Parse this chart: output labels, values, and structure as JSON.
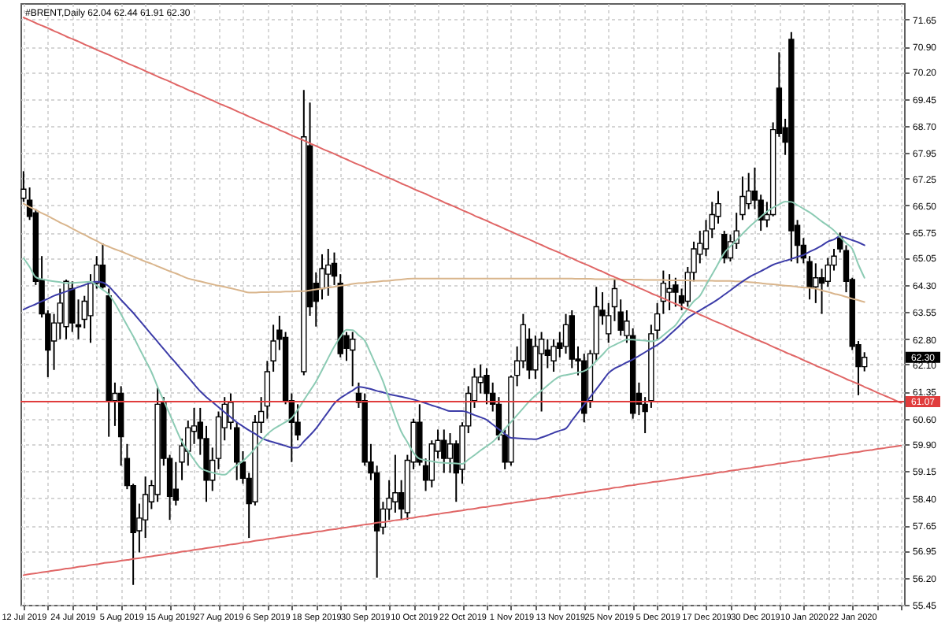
{
  "chart_data": {
    "type": "candlestick",
    "title": "#BRENT,Daily  62.04 62.44 61.91 62.30",
    "categories": [
      "12 Jul 2019",
      null,
      null,
      null,
      null,
      null,
      null,
      null,
      "24 Jul 2019",
      null,
      null,
      null,
      null,
      null,
      null,
      null,
      "5 Aug 2019",
      null,
      null,
      null,
      null,
      null,
      null,
      null,
      "15 Aug 2019",
      null,
      null,
      null,
      null,
      null,
      null,
      null,
      "27 Aug 2019",
      null,
      null,
      null,
      null,
      null,
      null,
      null,
      "6 Sep 2019",
      null,
      null,
      null,
      null,
      null,
      null,
      null,
      "18 Sep 2019",
      null,
      null,
      null,
      null,
      null,
      null,
      null,
      "30 Sep 2019",
      null,
      null,
      null,
      null,
      null,
      null,
      null,
      "10 Oct 2019",
      null,
      null,
      null,
      null,
      null,
      null,
      null,
      "22 Oct 2019",
      null,
      null,
      null,
      null,
      null,
      null,
      null,
      "1 Nov 2019",
      null,
      null,
      null,
      null,
      null,
      null,
      null,
      "13 Nov 2019",
      null,
      null,
      null,
      null,
      null,
      null,
      null,
      "25 Nov 2019",
      null,
      null,
      null,
      null,
      null,
      null,
      null,
      "5 Dec 2019",
      null,
      null,
      null,
      null,
      null,
      null,
      null,
      "17 Dec 2019",
      null,
      null,
      null,
      null,
      null,
      null,
      null,
      "30 Dec 2019",
      null,
      null,
      null,
      null,
      null,
      null,
      null,
      "10 Jan 2020",
      null,
      null,
      null,
      null,
      null,
      null,
      null,
      "22 Jan 2020",
      null,
      null,
      null,
      null,
      null,
      null,
      null,
      null
    ],
    "ohlc": [
      [
        66.7,
        67.45,
        66.6,
        66.95
      ],
      [
        66.65,
        67.0,
        66.1,
        66.2
      ],
      [
        66.3,
        66.4,
        64.3,
        64.4
      ],
      [
        64.45,
        65.1,
        63.4,
        63.5
      ],
      [
        63.5,
        63.6,
        61.75,
        62.5
      ],
      [
        62.75,
        63.5,
        61.95,
        63.25
      ],
      [
        63.25,
        64.2,
        62.8,
        63.8
      ],
      [
        63.15,
        64.45,
        62.8,
        64.4
      ],
      [
        64.2,
        64.4,
        63.0,
        63.25
      ],
      [
        63.2,
        63.9,
        62.8,
        63.15
      ],
      [
        63.35,
        64.0,
        63.1,
        63.85
      ],
      [
        63.45,
        64.6,
        62.7,
        64.35
      ],
      [
        64.35,
        65.1,
        64.2,
        64.85
      ],
      [
        64.85,
        65.45,
        64.2,
        64.25
      ],
      [
        64.0,
        64.2,
        60.1,
        61.1
      ],
      [
        61.1,
        61.6,
        60.4,
        61.3
      ],
      [
        61.3,
        61.5,
        59.3,
        60.1
      ],
      [
        59.5,
        59.9,
        58.65,
        58.75
      ],
      [
        58.75,
        58.8,
        56.0,
        57.45
      ],
      [
        57.5,
        58.25,
        56.9,
        57.85
      ],
      [
        57.8,
        59.0,
        57.3,
        58.5
      ],
      [
        58.3,
        58.9,
        58.1,
        58.75
      ],
      [
        58.5,
        61.45,
        58.3,
        61.0
      ],
      [
        61.05,
        61.2,
        59.3,
        59.5
      ],
      [
        59.5,
        59.6,
        57.8,
        58.45
      ],
      [
        58.65,
        59.4,
        58.2,
        58.35
      ],
      [
        59.4,
        60.05,
        58.9,
        59.85
      ],
      [
        59.7,
        60.55,
        59.3,
        60.35
      ],
      [
        60.25,
        60.9,
        59.9,
        60.4
      ],
      [
        60.5,
        60.9,
        59.6,
        60.05
      ],
      [
        60.05,
        60.4,
        58.3,
        58.9
      ],
      [
        58.9,
        59.8,
        58.6,
        59.45
      ],
      [
        59.5,
        60.8,
        59.2,
        60.65
      ],
      [
        60.35,
        61.2,
        60.0,
        61.0
      ],
      [
        60.5,
        61.3,
        60.3,
        61.05
      ],
      [
        60.35,
        60.5,
        58.9,
        59.4
      ],
      [
        59.4,
        59.7,
        58.8,
        58.95
      ],
      [
        58.95,
        59.1,
        57.3,
        58.25
      ],
      [
        58.3,
        60.7,
        58.2,
        60.5
      ],
      [
        60.5,
        61.2,
        60.2,
        60.8
      ],
      [
        60.95,
        62.2,
        60.6,
        61.9
      ],
      [
        62.2,
        63.2,
        61.9,
        62.75
      ],
      [
        63.05,
        63.45,
        62.5,
        62.8
      ],
      [
        62.85,
        63.0,
        61.0,
        61.1
      ],
      [
        61.1,
        61.3,
        59.4,
        60.5
      ],
      [
        60.5,
        61.0,
        60.0,
        60.15
      ],
      [
        61.9,
        69.7,
        61.8,
        68.4
      ],
      [
        68.15,
        69.35,
        63.45,
        63.7
      ],
      [
        64.35,
        64.65,
        63.15,
        63.85
      ],
      [
        64.2,
        65.15,
        63.9,
        64.75
      ],
      [
        64.6,
        65.3,
        64.0,
        64.85
      ],
      [
        64.9,
        65.2,
        64.3,
        64.55
      ],
      [
        64.35,
        64.6,
        62.3,
        62.4
      ],
      [
        62.9,
        63.0,
        62.2,
        62.55
      ],
      [
        62.5,
        63.0,
        61.5,
        62.8
      ],
      [
        61.3,
        61.6,
        60.9,
        61.05
      ],
      [
        61.1,
        61.3,
        59.3,
        59.4
      ],
      [
        59.4,
        59.9,
        58.9,
        59.1
      ],
      [
        59.1,
        59.3,
        56.2,
        57.5
      ],
      [
        57.6,
        58.3,
        57.4,
        58.1
      ],
      [
        58.1,
        58.9,
        57.8,
        58.4
      ],
      [
        58.3,
        59.6,
        58.0,
        58.55
      ],
      [
        58.55,
        58.9,
        57.8,
        58.1
      ],
      [
        58.0,
        59.6,
        57.8,
        59.45
      ],
      [
        59.4,
        60.6,
        59.2,
        60.5
      ],
      [
        60.5,
        61.0,
        59.3,
        59.4
      ],
      [
        59.3,
        59.5,
        58.6,
        58.9
      ],
      [
        58.9,
        60.0,
        58.7,
        59.9
      ],
      [
        59.7,
        60.3,
        59.5,
        60.0
      ],
      [
        60.0,
        60.3,
        59.1,
        59.5
      ],
      [
        59.5,
        60.2,
        59.1,
        59.9
      ],
      [
        59.9,
        60.0,
        58.3,
        59.1
      ],
      [
        59.2,
        60.5,
        58.8,
        60.4
      ],
      [
        60.4,
        61.5,
        60.2,
        61.3
      ],
      [
        61.1,
        62.0,
        60.9,
        61.75
      ],
      [
        61.6,
        62.1,
        61.3,
        61.75
      ],
      [
        61.8,
        62.0,
        61.0,
        61.3
      ],
      [
        61.3,
        61.6,
        60.8,
        61.0
      ],
      [
        61.0,
        61.2,
        60.0,
        60.15
      ],
      [
        60.15,
        60.3,
        59.2,
        59.4
      ],
      [
        59.4,
        61.8,
        59.3,
        61.75
      ],
      [
        61.8,
        62.6,
        61.5,
        62.2
      ],
      [
        62.2,
        63.5,
        62.0,
        63.2
      ],
      [
        62.8,
        63.1,
        61.7,
        61.95
      ],
      [
        61.95,
        62.9,
        61.7,
        62.6
      ],
      [
        62.4,
        63.0,
        60.8,
        62.8
      ],
      [
        62.5,
        62.8,
        62.0,
        62.35
      ],
      [
        62.2,
        62.8,
        61.9,
        62.6
      ],
      [
        62.7,
        63.0,
        62.3,
        62.55
      ],
      [
        62.6,
        63.5,
        62.4,
        63.2
      ],
      [
        63.45,
        63.6,
        62.0,
        62.25
      ],
      [
        62.25,
        62.6,
        61.8,
        62.2
      ],
      [
        62.2,
        62.4,
        60.5,
        60.75
      ],
      [
        61.1,
        62.5,
        60.9,
        62.4
      ],
      [
        62.4,
        64.25,
        62.2,
        63.7
      ],
      [
        63.6,
        64.1,
        63.2,
        63.45
      ],
      [
        62.95,
        63.8,
        62.7,
        63.45
      ],
      [
        63.7,
        64.45,
        63.3,
        64.2
      ],
      [
        63.55,
        63.9,
        62.9,
        63.05
      ],
      [
        62.9,
        63.6,
        62.7,
        63.3
      ],
      [
        62.9,
        63.1,
        60.6,
        60.75
      ],
      [
        61.3,
        61.6,
        60.7,
        61.0
      ],
      [
        61.0,
        61.2,
        60.2,
        60.8
      ],
      [
        61.1,
        63.2,
        60.9,
        62.95
      ],
      [
        63.05,
        63.8,
        62.8,
        63.5
      ],
      [
        63.85,
        64.7,
        63.5,
        64.35
      ],
      [
        64.1,
        64.6,
        63.6,
        64.2
      ],
      [
        64.3,
        64.5,
        63.7,
        64.1
      ],
      [
        64.0,
        64.2,
        63.6,
        63.8
      ],
      [
        63.85,
        64.8,
        63.7,
        64.65
      ],
      [
        64.65,
        65.5,
        64.4,
        65.3
      ],
      [
        65.15,
        65.8,
        64.9,
        65.45
      ],
      [
        65.3,
        66.1,
        65.1,
        65.8
      ],
      [
        65.85,
        66.6,
        65.6,
        66.25
      ],
      [
        66.2,
        66.9,
        66.0,
        66.55
      ],
      [
        65.7,
        65.8,
        64.9,
        65.05
      ],
      [
        65.05,
        65.7,
        64.95,
        65.5
      ],
      [
        65.45,
        66.3,
        65.3,
        65.8
      ],
      [
        66.25,
        67.3,
        66.1,
        66.75
      ],
      [
        66.55,
        67.4,
        66.4,
        66.9
      ],
      [
        66.9,
        67.55,
        66.4,
        66.65
      ],
      [
        66.65,
        66.8,
        65.8,
        66.1
      ],
      [
        66.1,
        66.6,
        65.9,
        66.25
      ],
      [
        66.25,
        68.8,
        66.2,
        68.6
      ],
      [
        69.75,
        70.74,
        68.4,
        68.5
      ],
      [
        68.65,
        68.9,
        67.9,
        68.25
      ],
      [
        71.1,
        71.3,
        64.95,
        65.8
      ],
      [
        65.95,
        66.1,
        64.9,
        65.4
      ],
      [
        65.4,
        65.6,
        64.9,
        65.05
      ],
      [
        64.95,
        65.1,
        63.9,
        64.25
      ],
      [
        64.25,
        64.9,
        63.8,
        64.5
      ],
      [
        64.5,
        64.75,
        63.5,
        64.35
      ],
      [
        64.4,
        65.05,
        64.25,
        64.85
      ],
      [
        64.85,
        65.3,
        64.7,
        65.1
      ],
      [
        65.6,
        65.75,
        65.2,
        65.3
      ],
      [
        65.25,
        65.4,
        64.1,
        64.4
      ],
      [
        64.45,
        64.5,
        62.5,
        62.6
      ],
      [
        62.65,
        62.75,
        61.25,
        62.04
      ],
      [
        62.04,
        62.44,
        61.91,
        62.3
      ],
      null,
      null,
      null,
      null,
      null,
      null
    ],
    "series": [
      {
        "type": "line",
        "color": "#d9b58c",
        "values": [
          66.55,
          66.46,
          66.38,
          66.29,
          66.21,
          66.12,
          66.03,
          65.95,
          65.86,
          65.77,
          65.69,
          65.6,
          65.52,
          65.43,
          65.36,
          65.29,
          65.23,
          65.16,
          65.09,
          65.02,
          64.95,
          64.89,
          64.82,
          64.75,
          64.68,
          64.62,
          64.55,
          64.48,
          64.44,
          64.4,
          64.36,
          64.32,
          64.28,
          64.25,
          64.21,
          64.17,
          64.13,
          64.09,
          64.09,
          64.1,
          64.1,
          64.11,
          64.11,
          64.12,
          64.12,
          64.13,
          64.13,
          64.15,
          64.18,
          64.2,
          64.23,
          64.25,
          64.28,
          64.3,
          64.33,
          64.35,
          64.36,
          64.38,
          64.39,
          64.41,
          64.42,
          64.44,
          64.45,
          64.47,
          64.48,
          64.48,
          64.48,
          64.48,
          64.48,
          64.48,
          64.48,
          64.48,
          64.48,
          64.48,
          64.48,
          64.48,
          64.48,
          64.48,
          64.48,
          64.48,
          64.48,
          64.48,
          64.48,
          64.48,
          64.48,
          64.48,
          64.48,
          64.48,
          64.48,
          64.48,
          64.48,
          64.47,
          64.47,
          64.47,
          64.46,
          64.46,
          64.46,
          64.46,
          64.45,
          64.45,
          64.45,
          64.45,
          64.44,
          64.44,
          64.44,
          64.44,
          64.43,
          64.43,
          64.43,
          64.43,
          64.42,
          64.42,
          64.42,
          64.42,
          64.41,
          64.41,
          64.41,
          64.4,
          64.4,
          64.38,
          64.37,
          64.35,
          64.33,
          64.32,
          64.3,
          64.28,
          64.27,
          64.25,
          64.23,
          64.22,
          64.2,
          64.15,
          64.11,
          64.06,
          64.02,
          63.97,
          63.92,
          63.88,
          63.83,
          null,
          null,
          null,
          null,
          null,
          null
        ]
      },
      {
        "type": "line",
        "color": "#3c3ca8",
        "values": [
          63.62,
          63.7,
          63.77,
          63.85,
          63.92,
          64.0,
          64.06,
          64.12,
          64.18,
          64.24,
          64.3,
          64.36,
          64.39,
          64.37,
          64.26,
          64.08,
          63.89,
          63.71,
          63.53,
          63.33,
          63.13,
          62.93,
          62.73,
          62.53,
          62.33,
          62.14,
          61.94,
          61.75,
          61.55,
          61.36,
          61.2,
          61.06,
          60.92,
          60.78,
          60.64,
          60.5,
          60.39,
          60.28,
          60.18,
          60.07,
          60.0,
          59.95,
          59.9,
          59.85,
          59.8,
          59.8,
          59.97,
          60.14,
          60.33,
          60.56,
          60.79,
          61.02,
          61.17,
          61.28,
          61.38,
          61.48,
          61.46,
          61.42,
          61.37,
          61.33,
          61.28,
          61.24,
          61.21,
          61.17,
          61.13,
          61.08,
          61.03,
          60.97,
          60.92,
          60.86,
          60.81,
          60.81,
          60.81,
          60.77,
          60.7,
          60.64,
          60.57,
          60.44,
          60.31,
          60.18,
          60.07,
          60.06,
          60.05,
          60.04,
          60.03,
          60.08,
          60.14,
          60.21,
          60.27,
          60.33,
          60.55,
          60.77,
          60.99,
          61.2,
          61.42,
          61.64,
          61.86,
          61.99,
          62.07,
          62.16,
          62.24,
          62.34,
          62.44,
          62.54,
          62.64,
          62.76,
          62.92,
          63.07,
          63.23,
          63.39,
          63.5,
          63.6,
          63.7,
          63.8,
          63.91,
          64.03,
          64.15,
          64.28,
          64.4,
          64.51,
          64.6,
          64.68,
          64.77,
          64.86,
          64.92,
          64.97,
          65.02,
          65.08,
          65.13,
          65.22,
          65.3,
          65.39,
          65.5,
          65.56,
          65.65,
          65.6,
          65.54,
          65.48,
          65.4,
          null,
          null,
          null,
          null,
          null,
          null
        ]
      },
      {
        "type": "line",
        "color": "#8ccbb4",
        "values": [
          65.04,
          64.8,
          64.52,
          64.46,
          64.43,
          64.4,
          64.38,
          64.35,
          64.36,
          64.37,
          64.38,
          64.39,
          64.29,
          64.17,
          64.04,
          63.79,
          63.49,
          63.18,
          62.88,
          62.55,
          62.22,
          61.89,
          61.48,
          61.1,
          60.72,
          60.33,
          59.96,
          59.71,
          59.46,
          59.24,
          59.16,
          59.11,
          59.07,
          59.05,
          59.18,
          59.31,
          59.43,
          59.59,
          59.78,
          59.98,
          60.17,
          60.31,
          60.41,
          60.51,
          60.62,
          60.85,
          61.11,
          61.37,
          61.63,
          61.95,
          62.28,
          62.6,
          62.86,
          63.06,
          63.05,
          62.91,
          62.76,
          62.4,
          62.02,
          61.63,
          61.14,
          60.66,
          60.24,
          59.95,
          59.66,
          59.49,
          59.45,
          59.42,
          59.39,
          59.38,
          59.37,
          59.36,
          59.35,
          59.47,
          59.59,
          59.72,
          59.84,
          59.96,
          60.13,
          60.32,
          60.51,
          60.7,
          60.89,
          61.08,
          61.24,
          61.38,
          61.52,
          61.66,
          61.77,
          61.81,
          61.84,
          61.88,
          61.92,
          62.02,
          62.2,
          62.37,
          62.55,
          62.64,
          62.72,
          62.79,
          62.79,
          62.77,
          62.76,
          62.74,
          62.78,
          62.91,
          63.05,
          63.19,
          63.43,
          63.64,
          63.85,
          64.0,
          64.3,
          64.59,
          64.89,
          65.19,
          65.37,
          65.54,
          65.72,
          65.89,
          66.04,
          66.19,
          66.33,
          66.44,
          66.53,
          66.61,
          66.6,
          66.51,
          66.41,
          66.31,
          66.19,
          66.06,
          65.94,
          65.81,
          65.63,
          65.46,
          65.3,
          64.87,
          64.5,
          null,
          null,
          null,
          null,
          null,
          null
        ]
      },
      {
        "type": "line",
        "color": "#e06666",
        "values": [
          71.7,
          71.63,
          71.55,
          71.48,
          71.41,
          71.33,
          71.26,
          71.18,
          71.11,
          71.04,
          70.96,
          70.89,
          70.81,
          70.74,
          70.67,
          70.59,
          70.52,
          70.44,
          70.37,
          70.3,
          70.22,
          70.15,
          70.07,
          70.0,
          69.93,
          69.85,
          69.78,
          69.7,
          69.63,
          69.56,
          69.48,
          69.41,
          69.33,
          69.26,
          69.19,
          69.11,
          69.04,
          68.96,
          68.89,
          68.81,
          68.74,
          68.67,
          68.59,
          68.52,
          68.44,
          68.37,
          68.3,
          68.22,
          68.15,
          68.07,
          68.0,
          67.93,
          67.85,
          67.78,
          67.7,
          67.63,
          67.56,
          67.48,
          67.41,
          67.33,
          67.26,
          67.19,
          67.11,
          67.04,
          66.96,
          66.89,
          66.82,
          66.74,
          66.67,
          66.59,
          66.52,
          66.45,
          66.37,
          66.3,
          66.22,
          66.15,
          66.08,
          66.0,
          65.93,
          65.85,
          65.78,
          65.7,
          65.63,
          65.56,
          65.48,
          65.41,
          65.33,
          65.26,
          65.19,
          65.11,
          65.04,
          64.96,
          64.89,
          64.82,
          64.74,
          64.67,
          64.59,
          64.52,
          64.45,
          64.37,
          64.3,
          64.22,
          64.15,
          64.07,
          64.0,
          63.93,
          63.85,
          63.78,
          63.7,
          63.63,
          63.56,
          63.48,
          63.41,
          63.33,
          63.26,
          63.19,
          63.11,
          63.04,
          62.96,
          62.89,
          62.81,
          62.74,
          62.67,
          62.59,
          62.52,
          62.44,
          62.37,
          62.3,
          62.22,
          62.15,
          62.07,
          62.0,
          61.93,
          61.85,
          61.78,
          61.7,
          61.63,
          61.56,
          61.48,
          61.41,
          61.33,
          61.26,
          61.19,
          61.11,
          61.04
        ]
      },
      {
        "type": "line",
        "color": "#e06666",
        "values": [
          56.27,
          56.3,
          56.32,
          56.35,
          56.37,
          56.4,
          56.42,
          56.45,
          56.47,
          56.5,
          56.52,
          56.55,
          56.57,
          56.6,
          56.62,
          56.64,
          56.67,
          56.69,
          56.72,
          56.74,
          56.77,
          56.79,
          56.82,
          56.84,
          56.87,
          56.89,
          56.92,
          56.94,
          56.97,
          56.99,
          57.02,
          57.04,
          57.07,
          57.09,
          57.12,
          57.14,
          57.17,
          57.19,
          57.22,
          57.24,
          57.27,
          57.29,
          57.32,
          57.34,
          57.37,
          57.39,
          57.42,
          57.44,
          57.47,
          57.49,
          57.52,
          57.54,
          57.57,
          57.59,
          57.62,
          57.64,
          57.67,
          57.69,
          57.72,
          57.74,
          57.76,
          57.79,
          57.81,
          57.84,
          57.86,
          57.89,
          57.91,
          57.94,
          57.96,
          57.99,
          58.01,
          58.04,
          58.06,
          58.09,
          58.11,
          58.14,
          58.16,
          58.19,
          58.21,
          58.24,
          58.26,
          58.29,
          58.31,
          58.34,
          58.36,
          58.39,
          58.41,
          58.44,
          58.46,
          58.49,
          58.51,
          58.54,
          58.56,
          58.59,
          58.61,
          58.64,
          58.66,
          58.69,
          58.71,
          58.74,
          58.76,
          58.79,
          58.81,
          58.84,
          58.86,
          58.88,
          58.91,
          58.93,
          58.96,
          58.98,
          59.01,
          59.03,
          59.06,
          59.08,
          59.11,
          59.13,
          59.16,
          59.18,
          59.21,
          59.23,
          59.26,
          59.28,
          59.31,
          59.33,
          59.36,
          59.38,
          59.41,
          59.43,
          59.46,
          59.48,
          59.51,
          59.53,
          59.56,
          59.58,
          59.61,
          59.63,
          59.66,
          59.68,
          59.71,
          59.73,
          59.76,
          59.78,
          59.81,
          59.83,
          59.86
        ]
      }
    ],
    "ref_lines": [
      {
        "axis": "y",
        "value": 61.07,
        "label": "61.07",
        "color": "#e03c3c"
      }
    ],
    "annotations": [
      "62.30"
    ],
    "ylim": [
      55.45,
      72.1
    ],
    "yticks": [
      55.45,
      {
        "value": 56.2,
        "label": "56.20"
      },
      56.95,
      57.65,
      {
        "value": 58.4,
        "label": "58.40"
      },
      59.15,
      {
        "value": 59.9,
        "label": "59.90"
      },
      {
        "value": 60.6,
        "label": "60.60"
      },
      61.35,
      {
        "value": 62.1,
        "label": "62.10"
      },
      {
        "value": 62.8,
        "label": "62.80"
      },
      63.55,
      {
        "value": 64.3,
        "label": "64.30"
      },
      65.05,
      65.75,
      {
        "value": 66.5,
        "label": "66.50"
      },
      67.25,
      67.95,
      {
        "value": 68.7,
        "label": "68.70"
      },
      69.45,
      {
        "value": 70.2,
        "label": "70.20"
      },
      {
        "value": 70.9,
        "label": "70.90"
      },
      71.65
    ],
    "grid": true
  }
}
